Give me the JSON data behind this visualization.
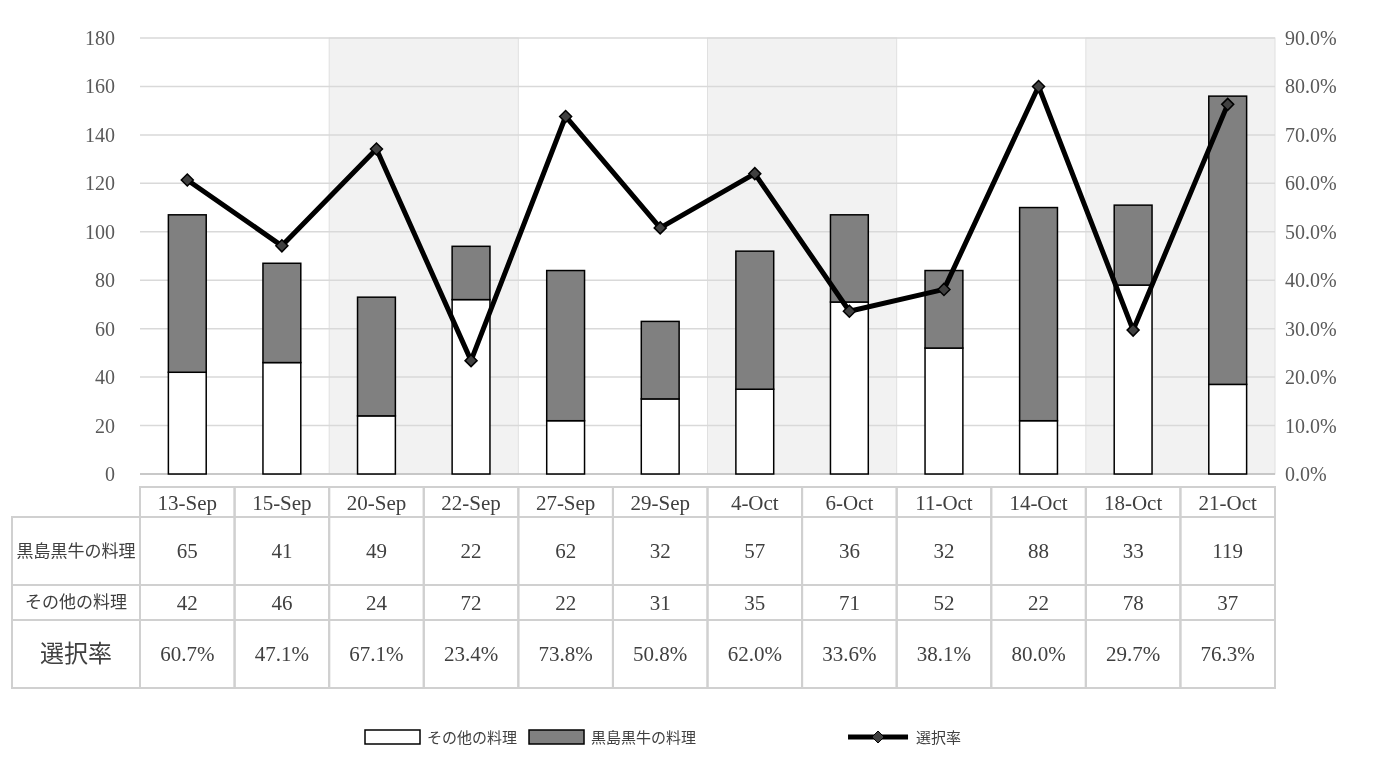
{
  "chart_data": {
    "type": "bar",
    "stacked": true,
    "categories": [
      "13-Sep",
      "15-Sep",
      "20-Sep",
      "22-Sep",
      "27-Sep",
      "29-Sep",
      "4-Oct",
      "6-Oct",
      "11-Oct",
      "14-Oct",
      "18-Oct",
      "21-Oct"
    ],
    "series": [
      {
        "name": "その他の料理",
        "color": "#ffffff",
        "values": [
          42,
          46,
          24,
          72,
          22,
          31,
          35,
          71,
          52,
          22,
          78,
          37
        ]
      },
      {
        "name": "黒島黒牛の料理",
        "color": "#808080",
        "values": [
          65,
          41,
          49,
          22,
          62,
          32,
          57,
          36,
          32,
          88,
          33,
          119
        ]
      },
      {
        "name": "選択率",
        "type": "line",
        "axis": "y2",
        "color": "#000000",
        "values": [
          60.7,
          47.1,
          67.1,
          23.4,
          73.8,
          50.8,
          62.0,
          33.6,
          38.1,
          80.0,
          29.7,
          76.3
        ],
        "value_labels": [
          "60.7%",
          "47.1%",
          "67.1%",
          "23.4%",
          "73.8%",
          "50.8%",
          "62.0%",
          "33.6%",
          "38.1%",
          "80.0%",
          "29.7%",
          "76.3%"
        ]
      }
    ],
    "ylim": [
      0,
      180
    ],
    "yticks": [
      0,
      20,
      40,
      60,
      80,
      100,
      120,
      140,
      160,
      180
    ],
    "y2lim": [
      0,
      90
    ],
    "y2ticks": [
      {
        "value": 0,
        "label": "0.0%"
      },
      {
        "value": 10,
        "label": "10.0%"
      },
      {
        "value": 20,
        "label": "20.0%"
      },
      {
        "value": 30,
        "label": "30.0%"
      },
      {
        "value": 40,
        "label": "40.0%"
      },
      {
        "value": 50,
        "label": "50.0%"
      },
      {
        "value": 60,
        "label": "60.0%"
      },
      {
        "value": 70,
        "label": "70.0%"
      },
      {
        "value": 80,
        "label": "80.0%"
      },
      {
        "value": 90,
        "label": "90.0%"
      }
    ],
    "grid": "y",
    "legend": "bottom",
    "marker": "diamond",
    "data_labels": true,
    "line_style": "solid"
  }
}
